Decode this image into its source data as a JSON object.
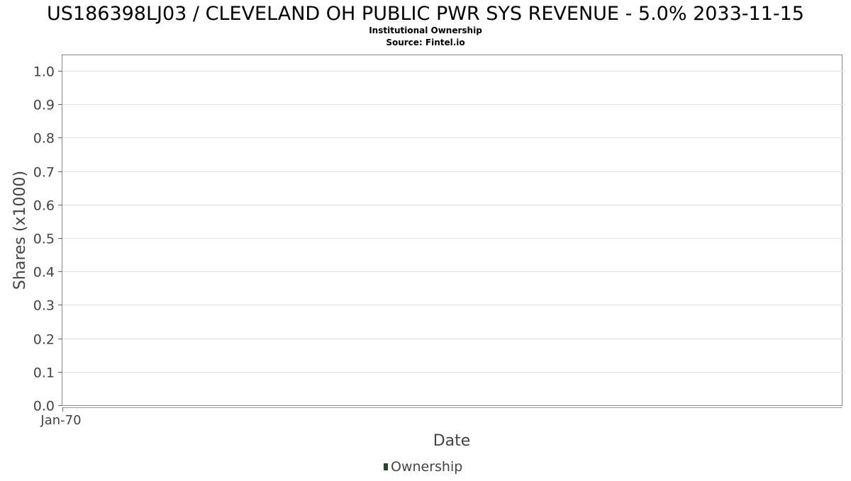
{
  "chart_data": {
    "type": "line",
    "title": "US186398LJ03 / CLEVELAND OH PUBLIC PWR SYS REVENUE - 5.0% 2033-11-15",
    "subtitle_1": "Institutional Ownership",
    "subtitle_2": "Source: Fintel.io",
    "xlabel": "Date",
    "ylabel": "Shares (x1000)",
    "x_ticks": [
      "Jan-70"
    ],
    "y_ticks": [
      0.0,
      0.1,
      0.2,
      0.3,
      0.4,
      0.5,
      0.6,
      0.7,
      0.8,
      0.9,
      1.0
    ],
    "ylim": [
      0,
      1.0
    ],
    "grid": true,
    "legend_placement": "bottom-center",
    "series": [
      {
        "name": "Ownership",
        "color": "#1e4d2b",
        "x": [],
        "values": []
      }
    ]
  }
}
